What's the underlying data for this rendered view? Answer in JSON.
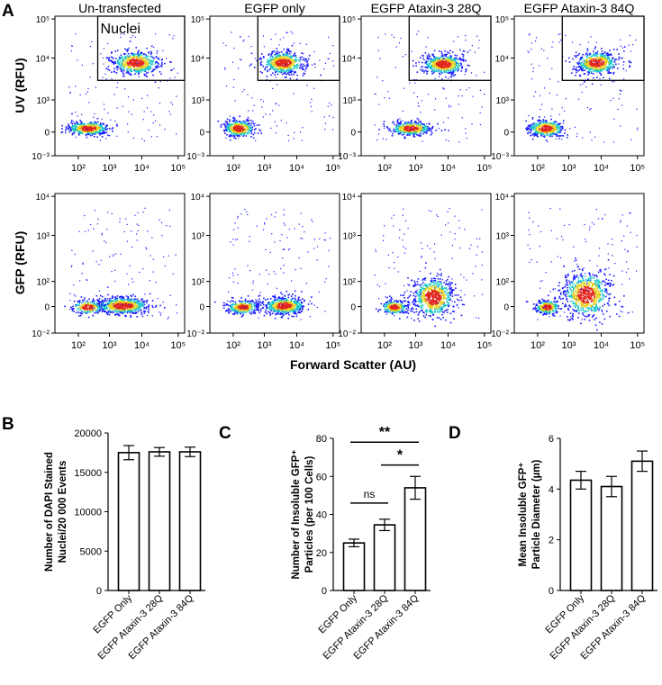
{
  "panel_letters": {
    "a": "A",
    "b": "B",
    "c": "C",
    "d": "D"
  },
  "colors": {
    "axis": "#000000",
    "density_low": "#1a1aff",
    "density_mid": "#19c8c8",
    "density_hi": "#e8d21e",
    "density_max": "#e0241e"
  },
  "flow": {
    "x_label": "Forward Scatter (AU)",
    "columns": [
      "Un-transfected",
      "EGFP only",
      "EGFP Ataxin-3 28Q",
      "EGFP Ataxin-3 84Q"
    ],
    "uv_row": {
      "ylabel": "UV (RFU)",
      "y_ticks": [
        "10³",
        "10⁴",
        "10⁵",
        "10³",
        "0",
        "10⁻³"
      ],
      "x_ticks": [
        "10²",
        "10³",
        "10⁴",
        "10⁵"
      ],
      "gate_label": "Nuclei"
    },
    "gfp_row": {
      "ylabel": "GFP (RFU)",
      "y_ticks": [
        "10⁴",
        "10³",
        "10²",
        "0",
        "10⁻²"
      ],
      "x_ticks": [
        "10²",
        "10³",
        "10⁴",
        "10⁵"
      ]
    }
  },
  "chart_data": [
    {
      "type": "bar",
      "panel": "B",
      "categories": [
        "EGFP Only",
        "EGFP Ataxin-3 28Q",
        "EGFP Ataxin-3 84Q"
      ],
      "values": [
        17500,
        17600,
        17600
      ],
      "errors": [
        900,
        550,
        600
      ],
      "ylabel": [
        "Number of DAPI Stained",
        "Nuclei/20 000 Events"
      ],
      "ylim": [
        0,
        20000
      ],
      "yticks": [
        0,
        5000,
        10000,
        15000,
        20000
      ]
    },
    {
      "type": "bar",
      "panel": "C",
      "categories": [
        "EGFP Only",
        "EGFP Ataxin-3 28Q",
        "EGFP Ataxin-3 84Q"
      ],
      "values": [
        25,
        34.5,
        54
      ],
      "errors": [
        2,
        3,
        6
      ],
      "ylabel": [
        "Number of Insoluble GFP⁺",
        "Particles (per 100 Cells)"
      ],
      "ylim": [
        0,
        80
      ],
      "yticks": [
        0,
        20,
        40,
        60,
        80
      ],
      "significance": [
        {
          "from": 0,
          "to": 1,
          "label": "ns",
          "y": 46
        },
        {
          "from": 1,
          "to": 2,
          "label": "*",
          "y": 66
        },
        {
          "from": 0,
          "to": 2,
          "label": "**",
          "y": 78
        }
      ]
    },
    {
      "type": "bar",
      "panel": "D",
      "categories": [
        "EGFP Only",
        "EGFP Ataxin-3 28Q",
        "EGFP Ataxin-3 84Q"
      ],
      "values": [
        4.35,
        4.1,
        5.1
      ],
      "errors": [
        0.35,
        0.4,
        0.4
      ],
      "ylabel": [
        "Mean Insoluble GFP⁺",
        "Particle Diameter (µm)"
      ],
      "ylim": [
        0,
        6
      ],
      "yticks": [
        0,
        2,
        4,
        6
      ]
    }
  ]
}
